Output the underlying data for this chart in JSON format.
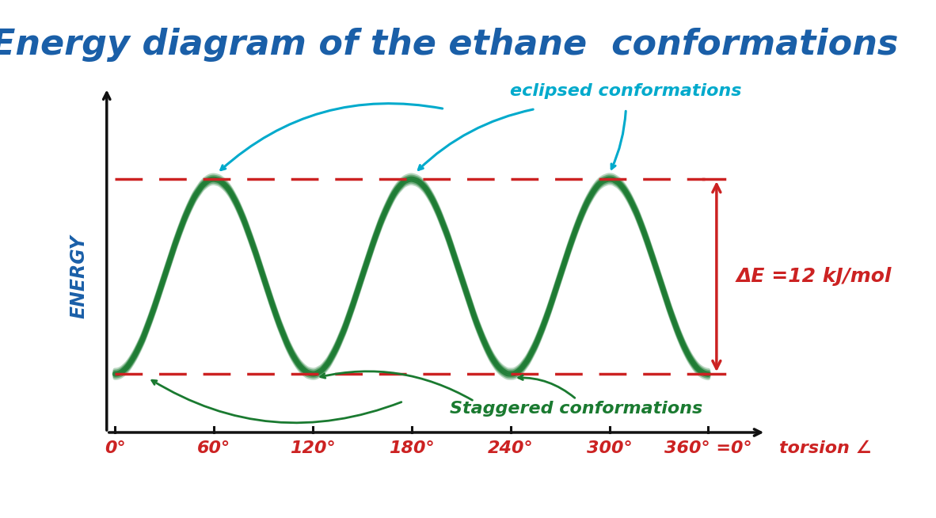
{
  "title": "Energy diagram of the ethane  conformations",
  "title_color": "#1a5fa8",
  "title_fontsize": 32,
  "xlabel": "torsion ∠",
  "ylabel": "ENERGY",
  "ylabel_color": "#1a5fa8",
  "xlabel_color": "#cc2222",
  "xtick_labels": [
    "0°",
    "60°",
    "120°",
    "180°",
    "240°",
    "300°",
    "360° =0°"
  ],
  "xtick_color": "#cc2222",
  "curve_color": "#1a7a30",
  "curve_linewidth": 5.0,
  "dashed_line_color": "#cc2222",
  "dashed_linewidth": 2.5,
  "energy_min": 0.0,
  "energy_max": 1.0,
  "eclipsed_label": "eclipsed conformations",
  "staggered_label": "Staggered conformations",
  "annotation_color_blue": "#00aacc",
  "annotation_color_green": "#1a7a30",
  "delta_e_label": "ΔE =12 kJ/mol",
  "delta_e_color": "#cc2222",
  "background_color": "#ffffff",
  "axis_color": "#111111"
}
